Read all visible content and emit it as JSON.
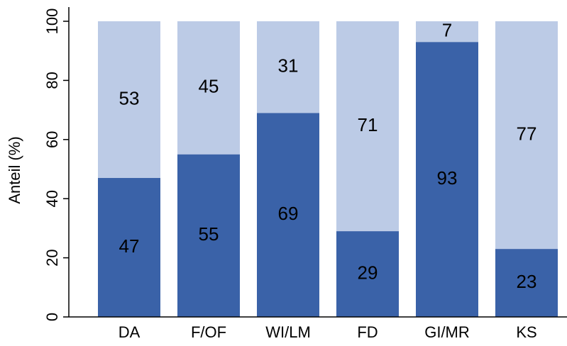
{
  "chart_data": {
    "type": "stacked_bar",
    "y_label": "Anteil (%)",
    "categories": [
      "DA",
      "F/OF",
      "WI/LM",
      "FD",
      "GI/MR",
      "KS"
    ],
    "series": [
      {
        "color": "#3a62a8",
        "values": [
          47,
          55,
          69,
          29,
          93,
          23
        ]
      },
      {
        "color": "#bccbe6",
        "values": [
          53,
          45,
          31,
          71,
          7,
          77
        ]
      }
    ],
    "ylim": [
      0,
      100
    ],
    "yticks": [
      0,
      20,
      40,
      60,
      80,
      100
    ]
  }
}
